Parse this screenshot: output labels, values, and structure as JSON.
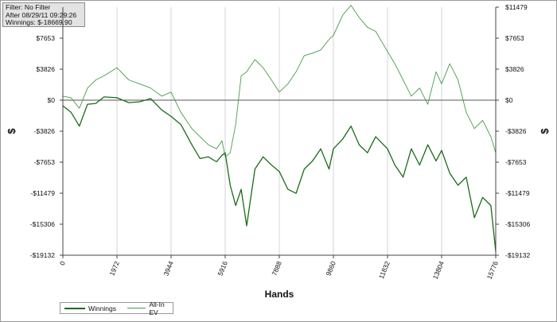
{
  "info": {
    "filter": "Filter: No Filter",
    "after": "After 08/29/11 09:29:26",
    "winnings": "Winnings: $-18669.90"
  },
  "colors": {
    "winnings": "#1a6b1a",
    "allin_ev": "#4a9a4a",
    "zero_line": "#555555",
    "grid": "#d6d6d6"
  },
  "chart_data": {
    "type": "line",
    "xlabel": "Hands",
    "ylabel": "$",
    "xlim": [
      0,
      15776
    ],
    "ylim": [
      -19132,
      11479
    ],
    "x_ticks": [
      0,
      1972,
      3944,
      5916,
      7888,
      9860,
      11832,
      13804,
      15776
    ],
    "y_ticks_left": [
      7653,
      3826,
      0,
      -3826,
      -7653,
      -11479,
      -15306,
      -19132
    ],
    "y_tick_labels_left": [
      "$7653",
      "$3826",
      "$0",
      "-$3826",
      "-$7653",
      "-$11479",
      "-$15306",
      "-$19132"
    ],
    "y_ticks_right": [
      11479,
      7653,
      3826,
      0,
      -3826,
      -7653,
      -11479,
      -15306,
      -19132
    ],
    "y_tick_labels_right": [
      "$11479",
      "$7653",
      "$3826",
      "$0",
      "-$3826",
      "-$7653",
      "-$11479",
      "-$15306",
      "-$19132"
    ],
    "legend_position": "bottom-left",
    "grid": "vertical",
    "series": [
      {
        "name": "Winnings",
        "x": [
          0,
          300,
          600,
          900,
          1200,
          1500,
          1972,
          2400,
          2800,
          3200,
          3600,
          3944,
          4300,
          4700,
          5000,
          5300,
          5600,
          5800,
          5916,
          6100,
          6300,
          6500,
          6700,
          7000,
          7300,
          7600,
          7888,
          8200,
          8500,
          8800,
          9100,
          9400,
          9700,
          9860,
          10200,
          10500,
          10800,
          11100,
          11400,
          11832,
          12100,
          12400,
          12700,
          13000,
          13300,
          13600,
          13804,
          14100,
          14400,
          14700,
          15000,
          15300,
          15600,
          15776
        ],
        "y": [
          -700,
          -1500,
          -3200,
          -500,
          -400,
          400,
          300,
          -300,
          -200,
          200,
          -1200,
          -2000,
          -3000,
          -5500,
          -7200,
          -7000,
          -7600,
          -6800,
          -6500,
          -10500,
          -13000,
          -11000,
          -15500,
          -8500,
          -7000,
          -8000,
          -8800,
          -11000,
          -11500,
          -8500,
          -7500,
          -6000,
          -8500,
          -6000,
          -4800,
          -3200,
          -5500,
          -6500,
          -4500,
          -6000,
          -8000,
          -9500,
          -6000,
          -8000,
          -5500,
          -7500,
          -6200,
          -9000,
          -10500,
          -9500,
          -14500,
          -12000,
          -13000,
          -18670
        ]
      },
      {
        "name": "All-In EV",
        "x": [
          0,
          300,
          600,
          900,
          1200,
          1500,
          1972,
          2400,
          2800,
          3200,
          3600,
          3944,
          4300,
          4700,
          5000,
          5300,
          5600,
          5800,
          5916,
          6100,
          6300,
          6500,
          6700,
          7000,
          7300,
          7600,
          7888,
          8200,
          8500,
          8800,
          9100,
          9400,
          9700,
          9860,
          10200,
          10500,
          10800,
          11100,
          11400,
          11832,
          12100,
          12400,
          12700,
          13000,
          13300,
          13600,
          13804,
          14100,
          14400,
          14700,
          15000,
          15300,
          15600,
          15776
        ],
        "y": [
          500,
          300,
          -1000,
          1500,
          2500,
          3000,
          4000,
          2500,
          2000,
          1500,
          500,
          1000,
          -1500,
          -3500,
          -4500,
          -5500,
          -6000,
          -5000,
          -7000,
          -6500,
          -3000,
          3000,
          3500,
          5000,
          4000,
          2500,
          1000,
          2000,
          3500,
          5500,
          5800,
          6200,
          7500,
          8000,
          10500,
          11700,
          10200,
          9000,
          8500,
          6000,
          4500,
          2500,
          500,
          1500,
          -500,
          3500,
          2000,
          4500,
          2500,
          -1500,
          -3500,
          -2500,
          -4500,
          -6500
        ]
      }
    ]
  }
}
